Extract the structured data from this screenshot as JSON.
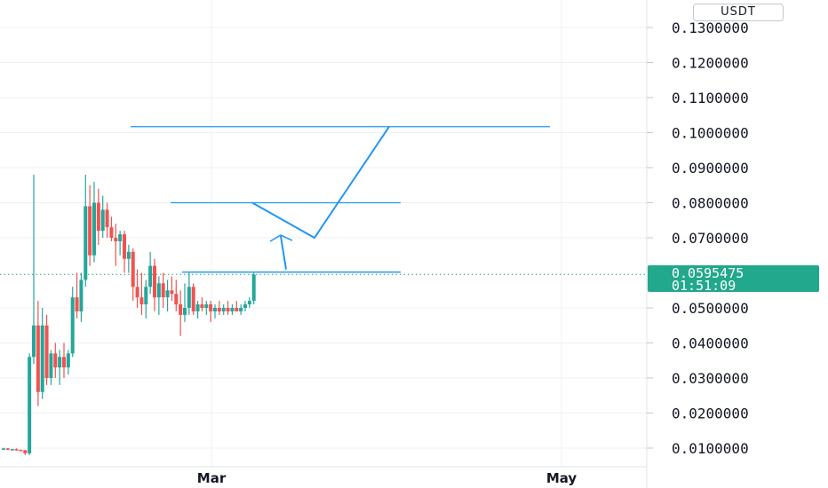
{
  "chart_data": {
    "type": "candlestick",
    "currency": "USDT",
    "y_axis": {
      "ticks": [
        0.01,
        0.02,
        0.03,
        0.04,
        0.05,
        0.07,
        0.08,
        0.09,
        0.1,
        0.11,
        0.12,
        0.13
      ],
      "tick_labels": [
        "0.0100000",
        "0.0200000",
        "0.0300000",
        "0.0400000",
        "0.0500000",
        "0.0700000",
        "0.0800000",
        "0.0900000",
        "0.1000000",
        "0.1100000",
        "0.1200000",
        "0.1300000"
      ],
      "range": [
        0.0,
        0.136
      ]
    },
    "x_axis": {
      "labels": [
        "Mar",
        "May"
      ]
    },
    "current_price": {
      "value": "0.0595475",
      "countdown": "01:51:09",
      "numeric": 0.0595475
    },
    "candles": [
      [
        0.0097,
        0.0101,
        0.0096,
        0.0099
      ],
      [
        0.0099,
        0.01,
        0.0095,
        0.0096
      ],
      [
        0.0096,
        0.0098,
        0.0094,
        0.0097
      ],
      [
        0.0097,
        0.0099,
        0.0093,
        0.0095
      ],
      [
        0.0095,
        0.0096,
        0.0092,
        0.0094
      ],
      [
        0.0094,
        0.0095,
        0.008,
        0.0085
      ],
      [
        0.0085,
        0.037,
        0.008,
        0.036
      ],
      [
        0.036,
        0.088,
        0.034,
        0.045
      ],
      [
        0.045,
        0.052,
        0.022,
        0.026
      ],
      [
        0.026,
        0.05,
        0.024,
        0.045
      ],
      [
        0.045,
        0.048,
        0.028,
        0.03
      ],
      [
        0.03,
        0.038,
        0.028,
        0.037
      ],
      [
        0.037,
        0.04,
        0.03,
        0.033
      ],
      [
        0.033,
        0.038,
        0.028,
        0.036
      ],
      [
        0.036,
        0.04,
        0.03,
        0.033
      ],
      [
        0.033,
        0.038,
        0.031,
        0.037
      ],
      [
        0.037,
        0.056,
        0.036,
        0.053
      ],
      [
        0.053,
        0.06,
        0.047,
        0.049
      ],
      [
        0.049,
        0.06,
        0.046,
        0.058
      ],
      [
        0.058,
        0.088,
        0.056,
        0.079
      ],
      [
        0.079,
        0.085,
        0.062,
        0.065
      ],
      [
        0.065,
        0.086,
        0.063,
        0.08
      ],
      [
        0.08,
        0.084,
        0.068,
        0.072
      ],
      [
        0.072,
        0.082,
        0.07,
        0.078
      ],
      [
        0.078,
        0.08,
        0.07,
        0.073
      ],
      [
        0.073,
        0.076,
        0.069,
        0.07
      ],
      [
        0.07,
        0.074,
        0.062,
        0.069
      ],
      [
        0.069,
        0.072,
        0.065,
        0.071
      ],
      [
        0.071,
        0.072,
        0.06,
        0.064
      ],
      [
        0.064,
        0.068,
        0.06,
        0.066
      ],
      [
        0.066,
        0.067,
        0.052,
        0.056
      ],
      [
        0.056,
        0.061,
        0.05,
        0.053
      ],
      [
        0.053,
        0.06,
        0.048,
        0.051
      ],
      [
        0.051,
        0.058,
        0.047,
        0.056
      ],
      [
        0.056,
        0.066,
        0.054,
        0.062
      ],
      [
        0.062,
        0.064,
        0.049,
        0.053
      ],
      [
        0.053,
        0.059,
        0.048,
        0.057
      ],
      [
        0.057,
        0.06,
        0.05,
        0.053
      ],
      [
        0.053,
        0.058,
        0.049,
        0.055
      ],
      [
        0.055,
        0.059,
        0.052,
        0.054
      ],
      [
        0.054,
        0.058,
        0.049,
        0.051
      ],
      [
        0.051,
        0.055,
        0.042,
        0.048
      ],
      [
        0.048,
        0.057,
        0.046,
        0.05
      ],
      [
        0.05,
        0.06,
        0.048,
        0.056
      ],
      [
        0.056,
        0.057,
        0.048,
        0.049
      ],
      [
        0.049,
        0.052,
        0.047,
        0.051
      ],
      [
        0.051,
        0.053,
        0.049,
        0.05
      ],
      [
        0.05,
        0.052,
        0.048,
        0.051
      ],
      [
        0.051,
        0.052,
        0.046,
        0.049
      ],
      [
        0.049,
        0.051,
        0.047,
        0.05
      ],
      [
        0.05,
        0.052,
        0.048,
        0.049
      ],
      [
        0.049,
        0.051,
        0.048,
        0.05
      ],
      [
        0.05,
        0.052,
        0.048,
        0.049
      ],
      [
        0.049,
        0.051,
        0.048,
        0.05
      ],
      [
        0.05,
        0.052,
        0.049,
        0.049
      ],
      [
        0.049,
        0.051,
        0.048,
        0.05
      ],
      [
        0.05,
        0.052,
        0.049,
        0.051
      ],
      [
        0.051,
        0.053,
        0.05,
        0.052
      ],
      [
        0.052,
        0.06,
        0.051,
        0.0595
      ]
    ],
    "drawings": {
      "horizontal_lines": [
        0.1017,
        0.08,
        0.0602
      ],
      "projection_path": [
        {
          "x": "line-start",
          "y": 0.08
        },
        {
          "x": "turn",
          "y": 0.07
        },
        {
          "x": "target",
          "y": 0.1017
        }
      ]
    },
    "colors": {
      "up": "#26a69a",
      "down": "#ef5350",
      "drawing": "#2196f3",
      "price_tag": "#22a88c",
      "grid": "#eef0f4",
      "text": "#131722"
    }
  }
}
